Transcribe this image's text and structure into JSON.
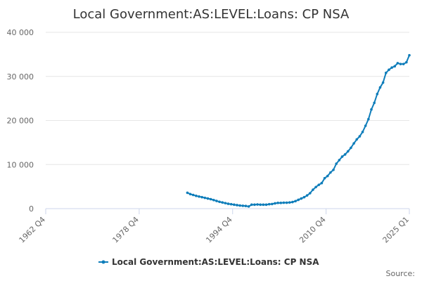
{
  "chart_data": {
    "type": "line",
    "title": "Local Government:AS:LEVEL:Loans: CP NSA",
    "source_label": "Source:",
    "x": [
      "1987 Q1",
      "1987 Q3",
      "1988 Q1",
      "1988 Q3",
      "1989 Q1",
      "1989 Q3",
      "1990 Q1",
      "1990 Q3",
      "1991 Q1",
      "1991 Q3",
      "1992 Q1",
      "1992 Q3",
      "1993 Q1",
      "1993 Q3",
      "1994 Q1",
      "1994 Q3",
      "1995 Q1",
      "1995 Q3",
      "1996 Q1",
      "1996 Q3",
      "1997 Q1",
      "1997 Q3",
      "1998 Q1",
      "1998 Q3",
      "1999 Q1",
      "1999 Q3",
      "2000 Q1",
      "2000 Q3",
      "2001 Q1",
      "2001 Q3",
      "2002 Q1",
      "2002 Q3",
      "2003 Q1",
      "2003 Q3",
      "2004 Q1",
      "2004 Q3",
      "2005 Q1",
      "2005 Q3",
      "2006 Q1",
      "2006 Q3",
      "2007 Q1",
      "2007 Q3",
      "2008 Q1",
      "2008 Q3",
      "2009 Q1",
      "2009 Q3",
      "2010 Q1",
      "2010 Q3",
      "2011 Q1",
      "2011 Q3",
      "2012 Q1",
      "2012 Q3",
      "2013 Q1",
      "2013 Q3",
      "2014 Q1",
      "2014 Q3",
      "2015 Q1",
      "2015 Q3",
      "2016 Q1",
      "2016 Q3",
      "2017 Q1",
      "2017 Q3",
      "2018 Q1",
      "2018 Q3",
      "2019 Q1",
      "2019 Q3",
      "2020 Q1",
      "2020 Q3",
      "2021 Q1",
      "2021 Q3",
      "2022 Q1",
      "2022 Q3",
      "2023 Q1",
      "2023 Q3",
      "2024 Q1",
      "2024 Q3",
      "2025 Q1"
    ],
    "series": [
      {
        "name": "Local Government:AS:LEVEL:Loans: CP NSA",
        "color": "#0e7dba",
        "values": [
          3600,
          3300,
          3100,
          2900,
          2750,
          2600,
          2450,
          2300,
          2150,
          1950,
          1750,
          1550,
          1400,
          1250,
          1100,
          1000,
          900,
          800,
          700,
          650,
          600,
          500,
          900,
          900,
          950,
          900,
          900,
          900,
          1000,
          1050,
          1200,
          1300,
          1300,
          1350,
          1350,
          1400,
          1500,
          1700,
          2000,
          2300,
          2600,
          3000,
          3500,
          4300,
          4900,
          5400,
          5800,
          6900,
          7400,
          8200,
          8800,
          10200,
          11000,
          11800,
          12300,
          13000,
          13800,
          14800,
          15700,
          16400,
          17400,
          18800,
          20300,
          22500,
          24000,
          26000,
          27500,
          28600,
          30800,
          31500,
          32000,
          32300,
          33000,
          32800,
          32800,
          33200,
          34800
        ]
      }
    ],
    "xlim": [
      "1962 Q4",
      "2025 Q1"
    ],
    "xticks": [
      "1962 Q4",
      "1978 Q4",
      "1994 Q4",
      "2010 Q4",
      "2025 Q1"
    ],
    "ylim": [
      0,
      40000
    ],
    "yticks": [
      0,
      {
        "value": 10000,
        "label": "10 000"
      },
      {
        "value": 20000,
        "label": "20 000"
      },
      {
        "value": 30000,
        "label": "30 000"
      },
      {
        "value": 40000,
        "label": "40 000"
      }
    ],
    "grid": true
  }
}
